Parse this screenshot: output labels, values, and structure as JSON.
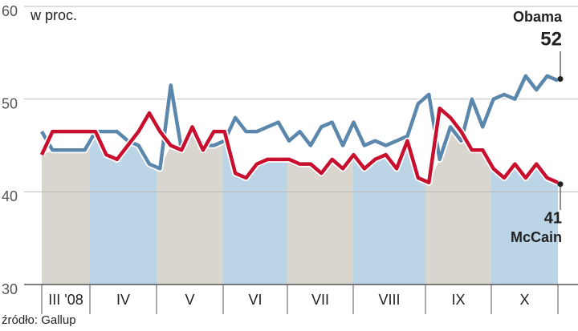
{
  "chart_data": {
    "type": "line",
    "unit_label": "w proc.",
    "source": "źródło: Gallup",
    "bands": [
      "III '08",
      "IV",
      "V",
      "VI",
      "VII",
      "VIII",
      "IX",
      "X"
    ],
    "band_colors": [
      "#d9d6cf",
      "#bcd5e6"
    ],
    "ylim": [
      30,
      60
    ],
    "yticks": [
      30,
      40,
      50,
      60
    ],
    "grid": true,
    "series": [
      {
        "name": "Obama",
        "color": "#5a87ab",
        "values": [
          46.5,
          44.5,
          44.5,
          44.5,
          44.5,
          46.5,
          46.5,
          46.5,
          45.5,
          45,
          43,
          42.5,
          51.5,
          44.5,
          47,
          45,
          45,
          45.5,
          48,
          46.5,
          46.5,
          47,
          47.5,
          45.5,
          46.5,
          45,
          47,
          47.5,
          45,
          47.5,
          45,
          45.5,
          45,
          45.5,
          46,
          49.5,
          50.5,
          43.5,
          47,
          45.5,
          50,
          47,
          50,
          50.5,
          50,
          52.5,
          51,
          52.5,
          52
        ]
      },
      {
        "name": "McCain",
        "color": "#c8102e",
        "values": [
          44,
          46.5,
          46.5,
          46.5,
          46.5,
          46.5,
          44,
          43.5,
          45,
          46.5,
          48.5,
          46.5,
          45,
          44.5,
          47,
          44.5,
          46.5,
          46.5,
          42,
          41.5,
          43,
          43.5,
          43.5,
          43.5,
          43,
          43,
          42,
          43.5,
          42.5,
          44,
          42.5,
          43.5,
          44,
          42.5,
          45.5,
          41.5,
          41,
          49,
          48,
          46.5,
          44.5,
          44.5,
          42.5,
          41.5,
          43,
          41.5,
          43,
          41.5,
          41
        ]
      }
    ]
  }
}
